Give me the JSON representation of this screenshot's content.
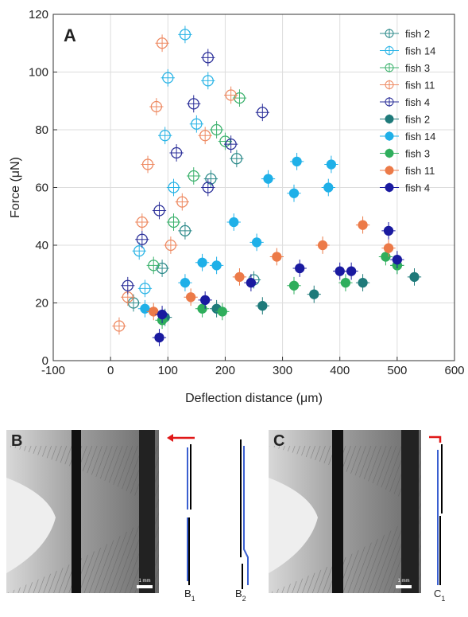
{
  "chart_data": {
    "type": "scatter",
    "panel_label": "A",
    "xlabel": "Deflection distance (μm)",
    "ylabel": "Force (μN)",
    "xlim": [
      -100,
      600
    ],
    "ylim": [
      0,
      120
    ],
    "xticks": [
      -100,
      0,
      100,
      200,
      300,
      400,
      500,
      600
    ],
    "yticks": [
      0,
      20,
      40,
      60,
      80,
      100,
      120
    ],
    "grid": true,
    "legend": "upper right",
    "series": [
      {
        "name": "fish 2",
        "color": "#2e8b8b",
        "filled": false,
        "xerr": 12,
        "yerr": 3,
        "x": [
          40,
          90,
          130,
          175,
          220,
          250
        ],
        "y": [
          20,
          32,
          45,
          63,
          70,
          28
        ]
      },
      {
        "name": "fish 14",
        "color": "#2ab4e6",
        "filled": false,
        "xerr": 12,
        "yerr": 3,
        "x": [
          50,
          100,
          130,
          110,
          150,
          170,
          95,
          60
        ],
        "y": [
          38,
          98,
          113,
          60,
          82,
          97,
          78,
          25
        ]
      },
      {
        "name": "fish 3",
        "color": "#3db26e",
        "filled": false,
        "xerr": 12,
        "yerr": 3,
        "x": [
          75,
          110,
          145,
          185,
          200,
          225
        ],
        "y": [
          33,
          48,
          64,
          80,
          76,
          91
        ]
      },
      {
        "name": "fish 11",
        "color": "#ee8a62",
        "filled": false,
        "xerr": 12,
        "yerr": 3,
        "x": [
          15,
          30,
          55,
          65,
          80,
          90,
          105,
          125,
          165,
          210
        ],
        "y": [
          12,
          22,
          48,
          68,
          88,
          110,
          40,
          55,
          78,
          92
        ]
      },
      {
        "name": "fish 4",
        "color": "#2b2f99",
        "filled": false,
        "xerr": 12,
        "yerr": 3,
        "x": [
          30,
          55,
          85,
          115,
          145,
          170,
          170,
          210,
          265
        ],
        "y": [
          26,
          42,
          52,
          72,
          89,
          105,
          60,
          75,
          86
        ]
      },
      {
        "name": "fish 2",
        "color": "#1f7a7a",
        "filled": true,
        "xerr": 12,
        "yerr": 3,
        "x": [
          95,
          185,
          265,
          355,
          440,
          500,
          530
        ],
        "y": [
          15,
          18,
          19,
          23,
          27,
          33,
          29
        ]
      },
      {
        "name": "fish 14",
        "color": "#1fb0e8",
        "filled": true,
        "xerr": 12,
        "yerr": 3,
        "x": [
          60,
          130,
          160,
          185,
          215,
          255,
          275,
          320,
          325,
          385,
          380
        ],
        "y": [
          18,
          27,
          34,
          33,
          48,
          41,
          63,
          58,
          69,
          68,
          60
        ]
      },
      {
        "name": "fish 3",
        "color": "#2fae5c",
        "filled": true,
        "xerr": 12,
        "yerr": 3,
        "x": [
          90,
          160,
          195,
          320,
          410,
          480,
          500
        ],
        "y": [
          14,
          18,
          17,
          26,
          27,
          36,
          33
        ]
      },
      {
        "name": "fish 11",
        "color": "#ec7a48",
        "filled": true,
        "xerr": 12,
        "yerr": 3,
        "x": [
          75,
          140,
          225,
          290,
          370,
          440,
          485
        ],
        "y": [
          17,
          22,
          29,
          36,
          40,
          47,
          39
        ]
      },
      {
        "name": "fish 4",
        "color": "#1a1aa0",
        "filled": true,
        "xerr": 12,
        "yerr": 3,
        "x": [
          85,
          90,
          165,
          245,
          330,
          400,
          420,
          485,
          500
        ],
        "y": [
          8,
          16,
          21,
          27,
          32,
          31,
          31,
          45,
          35
        ]
      }
    ]
  },
  "panels": [
    {
      "label": "B",
      "traces": [
        {
          "letter": "B",
          "sub": "1"
        },
        {
          "letter": "B",
          "sub": "2"
        }
      ],
      "scale": "1 mm"
    },
    {
      "label": "C",
      "traces": [
        {
          "letter": "C",
          "sub": "1"
        }
      ],
      "scale": "1 mm"
    }
  ]
}
